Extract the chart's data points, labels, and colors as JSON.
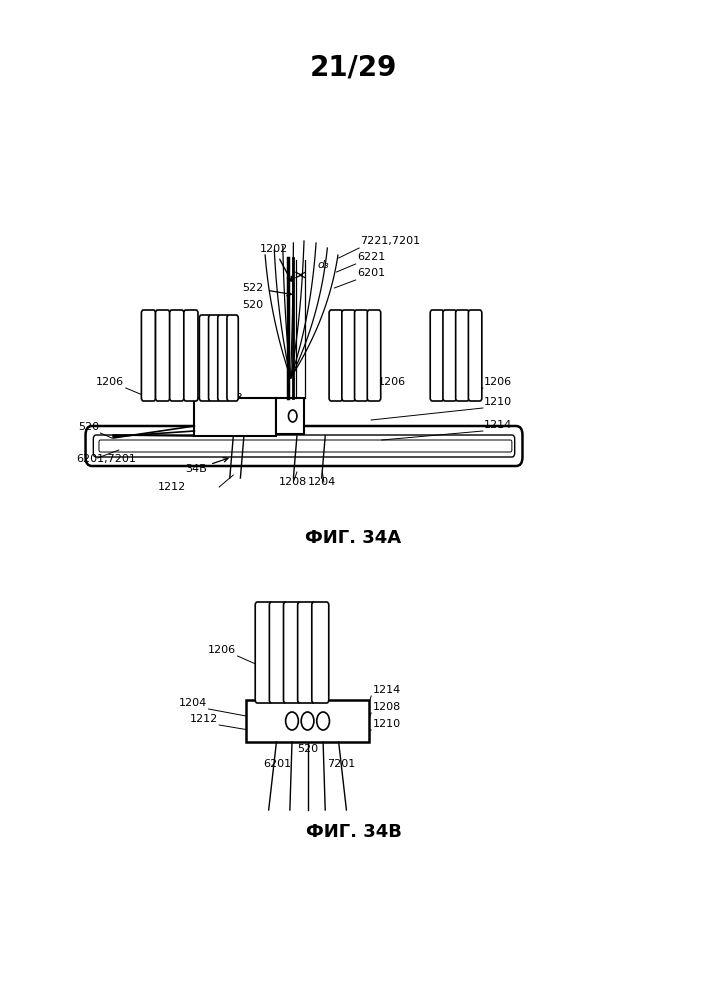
{
  "page_label": "21/29",
  "fig_a_label": "ФИГ. 34А",
  "fig_b_label": "ФИГ. 34В",
  "bg_color": "#ffffff",
  "line_color": "#000000",
  "text_color": "#000000"
}
